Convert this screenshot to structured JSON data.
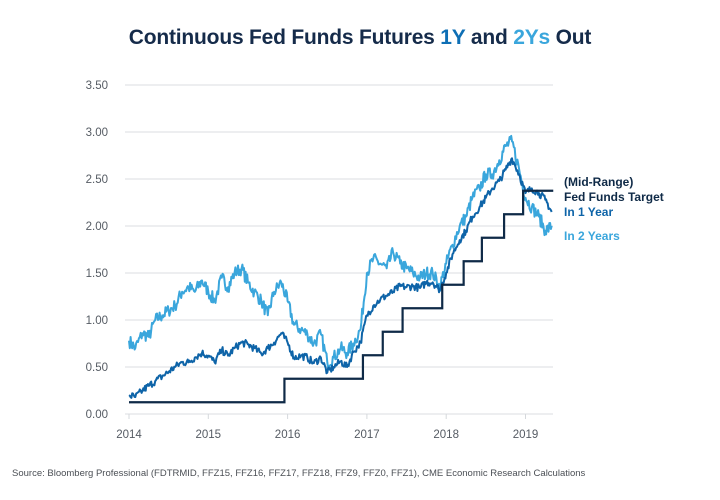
{
  "title": {
    "prefix": "Continuous Fed Funds Futures ",
    "accent1": "1Y",
    "middle": " and ",
    "accent2": "2Ys",
    "suffix": " Out"
  },
  "source": "Source: Bloomberg Professional (FDTRMID, FFZ15, FFZ16, FFZ17, FFZ18, FFZ9, FFZ0, FFZ1), CME Economic Research Calculations",
  "chart_data": {
    "type": "line",
    "title": "Continuous Fed Funds Futures 1Y and 2Ys Out",
    "xlabel": "",
    "ylabel": "",
    "xlim": [
      2014.0,
      2019.35
    ],
    "ylim": [
      0,
      3.5
    ],
    "grid": true,
    "y_ticks": [
      "0.00",
      "0.50",
      "1.00",
      "1.50",
      "2.00",
      "2.50",
      "3.00",
      "3.50"
    ],
    "y_tick_values": [
      0,
      0.5,
      1.0,
      1.5,
      2.0,
      2.5,
      3.0,
      3.5
    ],
    "x_ticks": [
      "2014",
      "2015",
      "2016",
      "2017",
      "2018",
      "2019"
    ],
    "x_tick_values": [
      2014,
      2015,
      2016,
      2017,
      2018,
      2019
    ],
    "legend_placement": "right",
    "series": [
      {
        "name": "(Mid-Range) Fed Funds Target",
        "legend_lines": [
          "(Mid-Range)",
          "Fed Funds Target"
        ],
        "color": "#0f2a47",
        "style": "step",
        "x": [
          2014.0,
          2015.96,
          2016.95,
          2017.2,
          2017.45,
          2017.95,
          2018.22,
          2018.45,
          2018.73,
          2018.97,
          2019.35
        ],
        "values": [
          0.125,
          0.375,
          0.625,
          0.875,
          1.125,
          1.375,
          1.625,
          1.875,
          2.125,
          2.375,
          2.375
        ]
      },
      {
        "name": "In 1 Year",
        "legend_lines": [
          "In 1 Year"
        ],
        "color": "#0e64a8",
        "style": "line",
        "x": [
          2014.0,
          2014.08,
          2014.17,
          2014.25,
          2014.33,
          2014.42,
          2014.5,
          2014.58,
          2014.67,
          2014.75,
          2014.83,
          2014.92,
          2015.0,
          2015.08,
          2015.17,
          2015.25,
          2015.33,
          2015.42,
          2015.5,
          2015.58,
          2015.67,
          2015.75,
          2015.83,
          2015.92,
          2016.0,
          2016.08,
          2016.17,
          2016.25,
          2016.33,
          2016.42,
          2016.5,
          2016.58,
          2016.67,
          2016.75,
          2016.83,
          2016.92,
          2017.0,
          2017.08,
          2017.17,
          2017.25,
          2017.33,
          2017.42,
          2017.5,
          2017.58,
          2017.67,
          2017.75,
          2017.83,
          2017.92,
          2018.0,
          2018.08,
          2018.17,
          2018.25,
          2018.33,
          2018.42,
          2018.5,
          2018.58,
          2018.67,
          2018.75,
          2018.83,
          2018.92,
          2019.0,
          2019.08,
          2019.17,
          2019.25,
          2019.33
        ],
        "values": [
          0.2,
          0.18,
          0.25,
          0.3,
          0.35,
          0.4,
          0.45,
          0.5,
          0.55,
          0.55,
          0.6,
          0.65,
          0.62,
          0.55,
          0.68,
          0.62,
          0.7,
          0.76,
          0.74,
          0.7,
          0.64,
          0.7,
          0.76,
          0.86,
          0.76,
          0.6,
          0.62,
          0.6,
          0.54,
          0.6,
          0.44,
          0.5,
          0.56,
          0.5,
          0.66,
          0.76,
          1.05,
          1.15,
          1.22,
          1.26,
          1.3,
          1.36,
          1.35,
          1.36,
          1.34,
          1.4,
          1.4,
          1.32,
          1.5,
          1.7,
          1.85,
          1.95,
          2.1,
          2.2,
          2.3,
          2.4,
          2.48,
          2.6,
          2.72,
          2.55,
          2.35,
          2.4,
          2.35,
          2.28,
          2.15
        ]
      },
      {
        "name": "In 2 Years",
        "legend_lines": [
          "In 2 Years"
        ],
        "color": "#3aa6dc",
        "style": "line",
        "x": [
          2014.0,
          2014.08,
          2014.17,
          2014.25,
          2014.33,
          2014.42,
          2014.5,
          2014.58,
          2014.67,
          2014.75,
          2014.83,
          2014.92,
          2015.0,
          2015.08,
          2015.17,
          2015.25,
          2015.33,
          2015.42,
          2015.5,
          2015.58,
          2015.67,
          2015.75,
          2015.83,
          2015.92,
          2016.0,
          2016.08,
          2016.17,
          2016.25,
          2016.33,
          2016.42,
          2016.5,
          2016.58,
          2016.67,
          2016.75,
          2016.83,
          2016.92,
          2017.0,
          2017.08,
          2017.17,
          2017.25,
          2017.33,
          2017.42,
          2017.5,
          2017.58,
          2017.67,
          2017.75,
          2017.83,
          2017.92,
          2018.0,
          2018.08,
          2018.17,
          2018.25,
          2018.33,
          2018.42,
          2018.5,
          2018.58,
          2018.67,
          2018.75,
          2018.83,
          2018.92,
          2019.0,
          2019.08,
          2019.17,
          2019.25,
          2019.33
        ],
        "values": [
          0.78,
          0.7,
          0.86,
          0.82,
          1.0,
          1.05,
          1.1,
          1.15,
          1.3,
          1.35,
          1.3,
          1.42,
          1.3,
          1.2,
          1.45,
          1.35,
          1.5,
          1.55,
          1.4,
          1.3,
          1.2,
          1.05,
          1.3,
          1.4,
          1.2,
          0.95,
          0.9,
          0.85,
          0.75,
          0.85,
          0.55,
          0.6,
          0.7,
          0.65,
          0.75,
          0.9,
          1.5,
          1.65,
          1.6,
          1.55,
          1.72,
          1.6,
          1.55,
          1.5,
          1.45,
          1.5,
          1.5,
          1.35,
          1.6,
          1.8,
          2.0,
          2.1,
          2.3,
          2.4,
          2.55,
          2.55,
          2.7,
          2.85,
          2.9,
          2.6,
          2.3,
          2.2,
          2.1,
          1.95,
          2.0
        ]
      }
    ]
  }
}
